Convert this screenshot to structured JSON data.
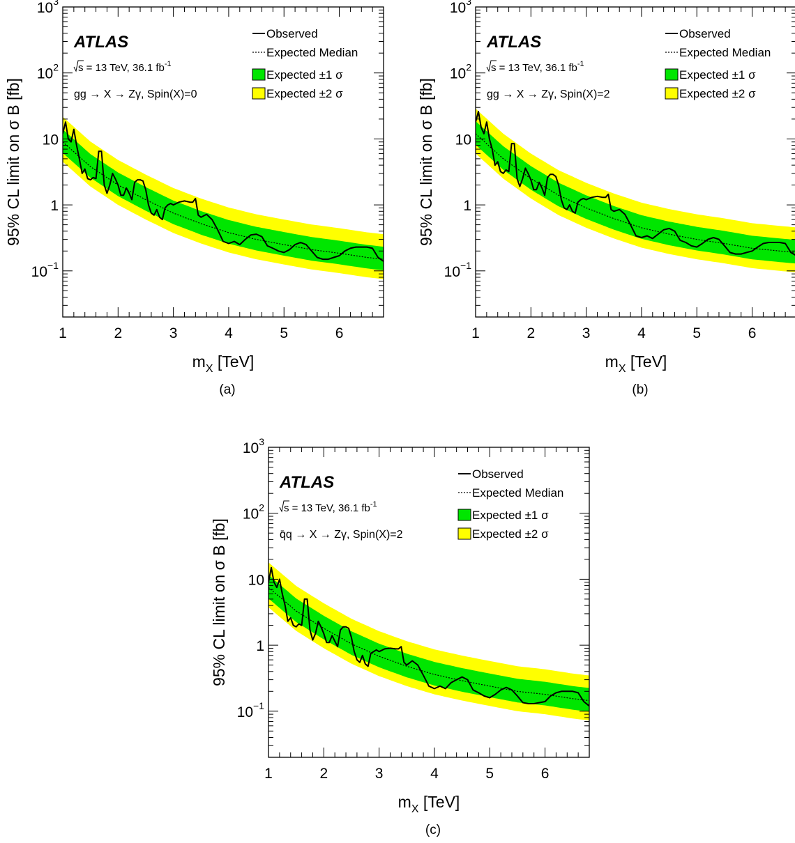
{
  "chart_data": [
    {
      "panel": "(a)",
      "type": "line",
      "experiment": "ATLAS",
      "energy_prefix": "s",
      "energy_text": " = 13 TeV, 36.1 fb",
      "lumi_exp": "-1",
      "process": "gg → X → Zγ, Spin(X)=0",
      "xlabel": "m",
      "xlabel_sub": "X",
      "xlabel_unit": " [TeV]",
      "ylabel": "95% CL limit on σ B [fb]",
      "xlim": [
        1,
        6.8
      ],
      "ylim": [
        0.02,
        1000
      ],
      "yscale": "log",
      "xticks": [
        "1",
        "2",
        "3",
        "4",
        "5",
        "6"
      ],
      "yticks": [
        {
          "value": 0.1,
          "base": "10",
          "exp": "−1"
        },
        {
          "value": 1,
          "base": "1",
          "exp": ""
        },
        {
          "value": 10,
          "base": "10",
          "exp": ""
        },
        {
          "value": 100,
          "base": "10",
          "exp": "2"
        },
        {
          "value": 1000,
          "base": "10",
          "exp": "3"
        }
      ],
      "legend": [
        "Observed",
        "Expected Median",
        "Expected ±1 σ",
        "Expected ±2 σ"
      ],
      "colors": {
        "band1": "#00e600",
        "band2": "#ffff00",
        "observed": "#000000",
        "expected": "#000000"
      },
      "expected": {
        "x": [
          1.0,
          1.5,
          2.0,
          2.5,
          3.0,
          3.5,
          4.0,
          4.5,
          5.0,
          5.5,
          6.0,
          6.5,
          6.8
        ],
        "y": [
          9.0,
          3.8,
          2.0,
          1.2,
          0.75,
          0.52,
          0.38,
          0.3,
          0.25,
          0.21,
          0.185,
          0.16,
          0.15
        ]
      },
      "observed": {
        "x": [
          1.0,
          1.05,
          1.1,
          1.15,
          1.2,
          1.25,
          1.3,
          1.35,
          1.4,
          1.45,
          1.5,
          1.55,
          1.6,
          1.65,
          1.7,
          1.75,
          1.8,
          1.85,
          1.9,
          1.95,
          2.0,
          2.05,
          2.1,
          2.15,
          2.2,
          2.25,
          2.3,
          2.35,
          2.4,
          2.45,
          2.5,
          2.55,
          2.6,
          2.65,
          2.7,
          2.75,
          2.8,
          2.85,
          2.9,
          2.95,
          3.0,
          3.1,
          3.2,
          3.3,
          3.35,
          3.4,
          3.45,
          3.5,
          3.6,
          3.7,
          3.8,
          3.9,
          4.0,
          4.1,
          4.2,
          4.3,
          4.4,
          4.5,
          4.6,
          4.7,
          4.8,
          4.9,
          5.0,
          5.1,
          5.2,
          5.3,
          5.4,
          5.5,
          5.6,
          5.7,
          5.8,
          5.9,
          6.0,
          6.1,
          6.2,
          6.3,
          6.4,
          6.5,
          6.6,
          6.7,
          6.8
        ],
        "y": [
          12,
          18,
          10,
          9,
          14,
          8,
          5,
          3,
          3.5,
          2.5,
          2.4,
          2.6,
          2.5,
          6.5,
          6.5,
          2.0,
          1.5,
          2.0,
          3.0,
          2.5,
          2.0,
          1.4,
          1.4,
          1.8,
          1.5,
          1.2,
          2.2,
          2.4,
          2.4,
          2.3,
          1.7,
          1.0,
          0.75,
          0.7,
          0.85,
          0.65,
          0.6,
          0.9,
          1.0,
          1.05,
          1.0,
          1.1,
          1.15,
          1.1,
          1.1,
          1.25,
          0.7,
          0.65,
          0.72,
          0.6,
          0.42,
          0.28,
          0.26,
          0.28,
          0.25,
          0.3,
          0.35,
          0.36,
          0.33,
          0.24,
          0.22,
          0.2,
          0.19,
          0.21,
          0.25,
          0.27,
          0.25,
          0.2,
          0.16,
          0.15,
          0.15,
          0.16,
          0.17,
          0.2,
          0.22,
          0.23,
          0.23,
          0.23,
          0.22,
          0.16,
          0.14
        ]
      }
    },
    {
      "panel": "(b)",
      "type": "line",
      "experiment": "ATLAS",
      "energy_prefix": "s",
      "energy_text": " = 13 TeV, 36.1 fb",
      "lumi_exp": "-1",
      "process": "gg → X → Zγ, Spin(X)=2",
      "xlabel": "m",
      "xlabel_sub": "X",
      "xlabel_unit": " [TeV]",
      "ylabel": "95% CL limit on σ B [fb]",
      "xlim": [
        1,
        6.8
      ],
      "ylim": [
        0.02,
        1000
      ],
      "yscale": "log",
      "xticks": [
        "1",
        "2",
        "3",
        "4",
        "5",
        "6"
      ],
      "yticks": [
        {
          "value": 0.1,
          "base": "10",
          "exp": "−1"
        },
        {
          "value": 1,
          "base": "1",
          "exp": ""
        },
        {
          "value": 10,
          "base": "10",
          "exp": ""
        },
        {
          "value": 100,
          "base": "10",
          "exp": "2"
        },
        {
          "value": 1000,
          "base": "10",
          "exp": "3"
        }
      ],
      "legend": [
        "Observed",
        "Expected Median",
        "Expected ±1 σ",
        "Expected ±2 σ"
      ],
      "colors": {
        "band1": "#00e600",
        "band2": "#ffff00",
        "observed": "#000000",
        "expected": "#000000"
      },
      "expected": {
        "x": [
          1.0,
          1.5,
          2.0,
          2.5,
          3.0,
          3.5,
          4.0,
          4.5,
          5.0,
          5.5,
          6.0,
          6.5,
          6.8
        ],
        "y": [
          12.0,
          5.0,
          2.5,
          1.4,
          0.9,
          0.62,
          0.45,
          0.36,
          0.3,
          0.26,
          0.22,
          0.2,
          0.19
        ]
      },
      "observed": {
        "x": [
          1.0,
          1.05,
          1.1,
          1.15,
          1.2,
          1.25,
          1.3,
          1.35,
          1.4,
          1.45,
          1.5,
          1.55,
          1.6,
          1.65,
          1.7,
          1.75,
          1.8,
          1.85,
          1.9,
          1.95,
          2.0,
          2.05,
          2.1,
          2.15,
          2.2,
          2.25,
          2.3,
          2.35,
          2.4,
          2.45,
          2.5,
          2.55,
          2.6,
          2.65,
          2.7,
          2.75,
          2.8,
          2.85,
          2.9,
          2.95,
          3.0,
          3.1,
          3.2,
          3.3,
          3.35,
          3.4,
          3.45,
          3.5,
          3.6,
          3.7,
          3.8,
          3.9,
          4.0,
          4.1,
          4.2,
          4.3,
          4.4,
          4.5,
          4.6,
          4.7,
          4.8,
          4.9,
          5.0,
          5.1,
          5.2,
          5.3,
          5.4,
          5.5,
          5.6,
          5.7,
          5.8,
          5.9,
          6.0,
          6.1,
          6.2,
          6.3,
          6.4,
          6.5,
          6.6,
          6.7,
          6.8
        ],
        "y": [
          18,
          26,
          15,
          12,
          18,
          10,
          7,
          4,
          4.5,
          3.2,
          3.0,
          3.4,
          3.2,
          8.5,
          8.5,
          2.5,
          1.9,
          2.5,
          3.6,
          3.0,
          2.4,
          1.7,
          1.7,
          2.2,
          1.8,
          1.4,
          2.6,
          2.9,
          2.9,
          2.7,
          2.0,
          1.2,
          0.9,
          0.85,
          1.0,
          0.8,
          0.75,
          1.1,
          1.2,
          1.25,
          1.2,
          1.3,
          1.35,
          1.3,
          1.3,
          1.45,
          0.85,
          0.8,
          0.85,
          0.72,
          0.5,
          0.34,
          0.32,
          0.34,
          0.31,
          0.36,
          0.42,
          0.44,
          0.4,
          0.29,
          0.27,
          0.24,
          0.23,
          0.26,
          0.3,
          0.32,
          0.3,
          0.24,
          0.19,
          0.18,
          0.18,
          0.19,
          0.2,
          0.23,
          0.26,
          0.27,
          0.27,
          0.27,
          0.26,
          0.19,
          0.17
        ]
      }
    },
    {
      "panel": "(c)",
      "type": "line",
      "experiment": "ATLAS",
      "energy_prefix": "s",
      "energy_text": " = 13 TeV, 36.1 fb",
      "lumi_exp": "-1",
      "process": "q̄q → X → Zγ, Spin(X)=2",
      "xlabel": "m",
      "xlabel_sub": "X",
      "xlabel_unit": " [TeV]",
      "ylabel": "95% CL limit on σ B [fb]",
      "xlim": [
        1,
        6.8
      ],
      "ylim": [
        0.02,
        1000
      ],
      "yscale": "log",
      "xticks": [
        "1",
        "2",
        "3",
        "4",
        "5",
        "6"
      ],
      "yticks": [
        {
          "value": 0.1,
          "base": "10",
          "exp": "−1"
        },
        {
          "value": 1,
          "base": "1",
          "exp": ""
        },
        {
          "value": 10,
          "base": "10",
          "exp": ""
        },
        {
          "value": 100,
          "base": "10",
          "exp": "2"
        },
        {
          "value": 1000,
          "base": "10",
          "exp": "3"
        }
      ],
      "legend": [
        "Observed",
        "Expected Median",
        "Expected ±1 σ",
        "Expected ±2 σ"
      ],
      "colors": {
        "band1": "#00e600",
        "band2": "#ffff00",
        "observed": "#000000",
        "expected": "#000000"
      },
      "expected": {
        "x": [
          1.0,
          1.5,
          2.0,
          2.5,
          3.0,
          3.5,
          4.0,
          4.5,
          5.0,
          5.5,
          6.0,
          6.5,
          6.8
        ],
        "y": [
          7.5,
          3.3,
          1.8,
          1.05,
          0.68,
          0.48,
          0.36,
          0.29,
          0.24,
          0.2,
          0.18,
          0.155,
          0.145
        ]
      },
      "observed": {
        "x": [
          1.0,
          1.05,
          1.1,
          1.15,
          1.2,
          1.25,
          1.3,
          1.35,
          1.4,
          1.45,
          1.5,
          1.55,
          1.6,
          1.65,
          1.7,
          1.75,
          1.8,
          1.85,
          1.9,
          1.95,
          2.0,
          2.05,
          2.1,
          2.15,
          2.2,
          2.25,
          2.3,
          2.35,
          2.4,
          2.45,
          2.5,
          2.55,
          2.6,
          2.65,
          2.7,
          2.75,
          2.8,
          2.85,
          2.9,
          2.95,
          3.0,
          3.1,
          3.2,
          3.3,
          3.35,
          3.4,
          3.45,
          3.5,
          3.6,
          3.7,
          3.8,
          3.9,
          4.0,
          4.1,
          4.2,
          4.3,
          4.4,
          4.5,
          4.6,
          4.7,
          4.8,
          4.9,
          5.0,
          5.1,
          5.2,
          5.3,
          5.4,
          5.5,
          5.6,
          5.7,
          5.8,
          5.9,
          6.0,
          6.1,
          6.2,
          6.3,
          6.4,
          6.5,
          6.6,
          6.7,
          6.8
        ],
        "y": [
          9,
          15,
          9,
          7.5,
          10,
          6,
          4,
          2.3,
          2.6,
          2.0,
          1.9,
          2.1,
          2.0,
          5.0,
          5.0,
          1.7,
          1.2,
          1.5,
          2.3,
          1.9,
          1.5,
          1.1,
          1.1,
          1.4,
          1.15,
          0.95,
          1.7,
          1.9,
          1.9,
          1.8,
          1.3,
          0.8,
          0.6,
          0.55,
          0.7,
          0.52,
          0.48,
          0.75,
          0.8,
          0.85,
          0.8,
          0.88,
          0.9,
          0.88,
          0.88,
          0.95,
          0.55,
          0.5,
          0.58,
          0.5,
          0.35,
          0.24,
          0.22,
          0.24,
          0.22,
          0.27,
          0.3,
          0.33,
          0.3,
          0.21,
          0.19,
          0.17,
          0.16,
          0.18,
          0.21,
          0.23,
          0.21,
          0.17,
          0.135,
          0.13,
          0.13,
          0.135,
          0.14,
          0.17,
          0.19,
          0.2,
          0.2,
          0.2,
          0.19,
          0.14,
          0.12
        ]
      }
    }
  ]
}
